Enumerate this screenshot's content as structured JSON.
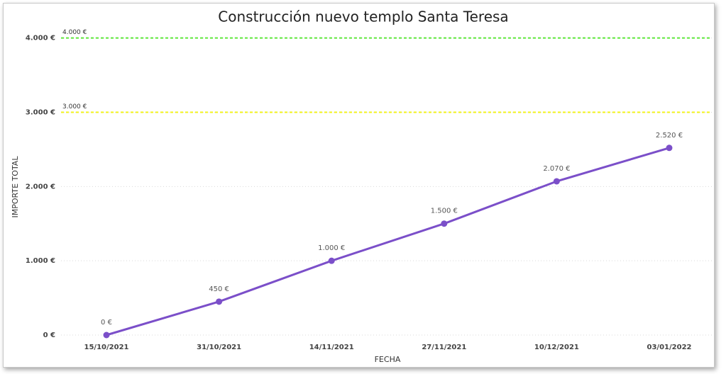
{
  "chart_data": {
    "type": "line",
    "title": "Construcción nuevo templo Santa Teresa",
    "x_label": "FECHA",
    "y_label": "IMPORTE TOTAL",
    "categories": [
      "15/10/2021",
      "31/10/2021",
      "14/11/2021",
      "27/11/2021",
      "10/12/2021",
      "03/01/2022"
    ],
    "series": [
      {
        "name": "IMPORTE TOTAL",
        "color": "#7b4fc9",
        "values": [
          0,
          450,
          1000,
          1500,
          2070,
          2520
        ],
        "value_labels": [
          "0 €",
          "450 €",
          "1.000 €",
          "1.500 €",
          "2.070 €",
          "2.520 €"
        ]
      }
    ],
    "ylim": [
      0,
      4130
    ],
    "yticks": [
      {
        "value": 0,
        "label": "0 €"
      },
      {
        "value": 1000,
        "label": "1.000 €"
      },
      {
        "value": 2000,
        "label": "2.000 €"
      },
      {
        "value": 3000,
        "label": "3.000 €"
      },
      {
        "value": 4000,
        "label": "4.000 €"
      }
    ],
    "grid": true,
    "reference_lines": [
      {
        "value": 4000,
        "label": "4.000 €",
        "color": "#5ee83a"
      },
      {
        "value": 3000,
        "label": "3.000 €",
        "color": "#f2f21a"
      }
    ]
  }
}
